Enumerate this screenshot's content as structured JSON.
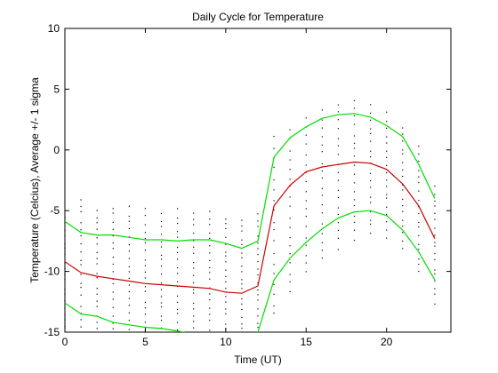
{
  "chart_data": {
    "type": "scatter",
    "title": "Daily Cycle for Temperature",
    "xlabel": "Time (UT)",
    "ylabel": "Temperature (Celcius), Average +/- 1 sigma",
    "xlim": [
      0,
      24
    ],
    "ylim": [
      -15,
      10
    ],
    "xticks": [
      0,
      5,
      10,
      15,
      20
    ],
    "yticks": [
      -15,
      -10,
      -5,
      0,
      5,
      10
    ],
    "grid": false,
    "colors": {
      "average": "#cc0000",
      "sigma": "#00dd00",
      "points": "#000000"
    },
    "series": [
      {
        "role": "average",
        "x": [
          0,
          1,
          2,
          3,
          4,
          5,
          6,
          7,
          8,
          9,
          10,
          11,
          12,
          13,
          14,
          15,
          16,
          17,
          18,
          19,
          20,
          21,
          22,
          23
        ],
        "y": [
          -9.2,
          -10.1,
          -10.4,
          -10.6,
          -10.8,
          -11.0,
          -11.1,
          -11.2,
          -11.3,
          -11.4,
          -11.7,
          -11.8,
          -11.2,
          -4.6,
          -2.9,
          -1.8,
          -1.4,
          -1.2,
          -1.0,
          -1.1,
          -1.6,
          -2.8,
          -4.6,
          -7.3
        ]
      },
      {
        "role": "plus-1-sigma",
        "x": [
          0,
          1,
          2,
          3,
          4,
          5,
          6,
          7,
          8,
          9,
          10,
          11,
          12,
          13,
          14,
          15,
          16,
          17,
          18,
          19,
          20,
          21,
          22,
          23
        ],
        "y": [
          -5.9,
          -6.8,
          -7.0,
          -7.0,
          -7.2,
          -7.4,
          -7.4,
          -7.5,
          -7.4,
          -7.4,
          -7.7,
          -8.1,
          -7.5,
          -0.6,
          1.0,
          1.9,
          2.6,
          2.9,
          3.0,
          2.7,
          2.0,
          1.1,
          -1.2,
          -4.0
        ]
      },
      {
        "role": "minus-1-sigma",
        "x": [
          0,
          1,
          2,
          3,
          4,
          5,
          6,
          7,
          8,
          9,
          10,
          11,
          12,
          13,
          14,
          15,
          16,
          17,
          18,
          19,
          20,
          21,
          22,
          23
        ],
        "y": [
          -12.6,
          -13.5,
          -13.7,
          -14.2,
          -14.4,
          -14.6,
          -14.7,
          -14.9,
          -15.2,
          -15.3,
          -15.5,
          -15.6,
          -15.0,
          -10.7,
          -8.9,
          -7.6,
          -6.5,
          -5.6,
          -5.1,
          -5.0,
          -5.4,
          -6.6,
          -8.4,
          -10.7
        ]
      }
    ],
    "scatter_spread": {
      "hours": [
        0,
        1,
        2,
        3,
        4,
        5,
        6,
        7,
        8,
        9,
        10,
        11,
        12,
        13,
        14,
        15,
        16,
        17,
        18,
        19,
        20,
        21,
        22,
        23
      ],
      "min": [
        -14.8,
        -14.9,
        -15.0,
        -15.0,
        -15.0,
        -15.0,
        -15.0,
        -15.0,
        -15.0,
        -15.0,
        -15.0,
        -15.0,
        -15.0,
        -14.0,
        -12.2,
        -10.5,
        -9.3,
        -8.5,
        -7.6,
        -7.2,
        -7.4,
        -8.4,
        -10.4,
        -12.8
      ],
      "max": [
        -5.2,
        -3.7,
        -4.6,
        -4.4,
        -4.5,
        -4.6,
        -4.9,
        -4.7,
        -4.9,
        -4.9,
        -5.3,
        -5.5,
        -5.0,
        1.5,
        2.0,
        3.0,
        3.7,
        4.2,
        4.3,
        4.1,
        3.3,
        2.2,
        0.6,
        -2.8
      ],
      "count": 18
    }
  }
}
